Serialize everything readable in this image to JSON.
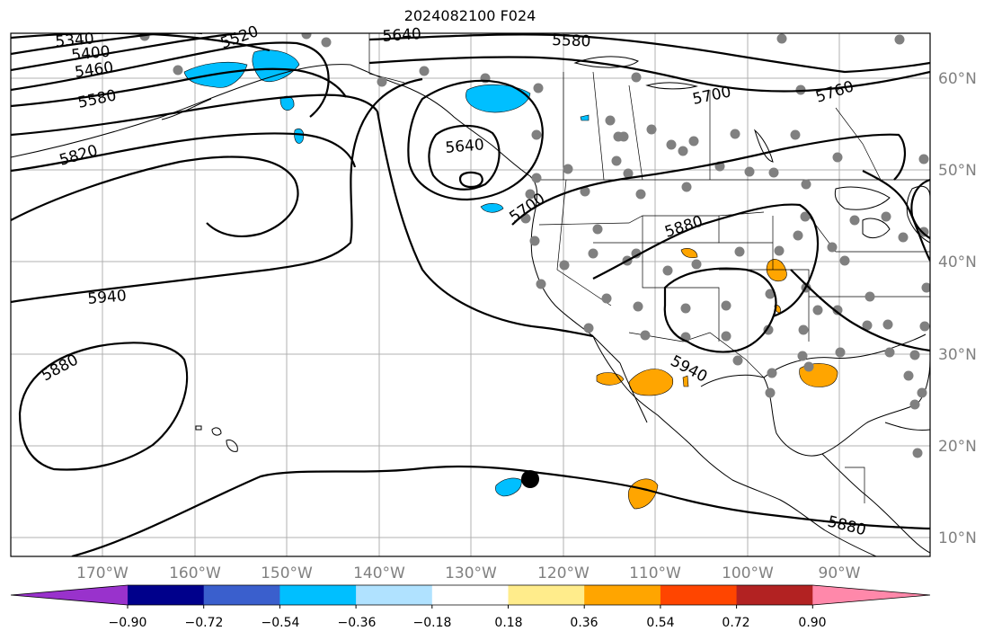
{
  "title": "2024082100 F024",
  "lat_labels": [
    "60°N",
    "50°N",
    "40°N",
    "30°N",
    "20°N",
    "10°N"
  ],
  "lon_labels": [
    "170°W",
    "160°W",
    "150°W",
    "140°W",
    "130°W",
    "120°W",
    "110°W",
    "100°W",
    "90°W"
  ],
  "colorbar": {
    "ticks": [
      "−0.90",
      "−0.72",
      "−0.54",
      "−0.36",
      "−0.18",
      "0.18",
      "0.36",
      "0.54",
      "0.72",
      "0.90"
    ],
    "colors": [
      "#9932cc",
      "#00008b",
      "#3a5fcd",
      "#00bfff",
      "#b0e2ff",
      "#ffffff",
      "#ffec8b",
      "#ffa500",
      "#ff4500",
      "#b22222",
      "#ff88aa"
    ]
  },
  "contour_labels": [
    "5340",
    "5400",
    "5460",
    "5520",
    "5580",
    "5640",
    "5580",
    "5700",
    "5760",
    "5820",
    "5640",
    "5700",
    "5880",
    "5940",
    "5880",
    "5940",
    "5880"
  ],
  "colors": {
    "positive_anomaly": "#ffa500",
    "negative_anomaly": "#00bfff",
    "station_dot": "#808080",
    "storm_marker": "#000000"
  }
}
